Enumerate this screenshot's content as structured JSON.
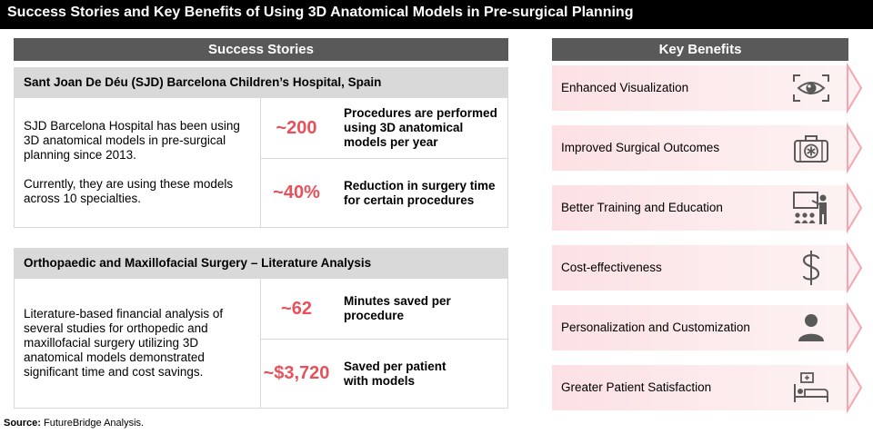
{
  "title": "Success Stories and Key Benefits of Using 3D Anatomical Models in Pre-surgical Planning",
  "success_stories": {
    "heading": "Success Stories",
    "cards": [
      {
        "title": "Sant Joan De Déu (SJD) Barcelona Children’s Hospital, Spain",
        "paragraphs": [
          "SJD Barcelona Hospital has been using\n3D anatomical models in pre-surgical\nplanning since 2013.",
          "Currently, they are using these models\nacross 10 specialties."
        ],
        "stats": [
          {
            "value": "~200",
            "label": "Procedures are performed\nusing 3D anatomical\nmodels per year"
          },
          {
            "value": "~40%",
            "label": "Reduction in surgery time\nfor certain procedures"
          }
        ]
      },
      {
        "title": "Orthopaedic and Maxillofacial Surgery – Literature Analysis",
        "paragraphs": [
          "Literature-based financial analysis of\nseveral studies for orthopedic and\nmaxillofacial surgery utilizing 3D\nanatomical models demonstrated\nsignificant time and cost savings."
        ],
        "stats": [
          {
            "value": "~62",
            "label": "Minutes saved per\nprocedure"
          },
          {
            "value": "~$3,720",
            "label": "Saved per patient\nwith models"
          }
        ]
      }
    ]
  },
  "key_benefits": {
    "heading": "Key Benefits",
    "items": [
      {
        "label": "Enhanced Visualization",
        "icon": "eye-scan-icon"
      },
      {
        "label": "Improved Surgical Outcomes",
        "icon": "medical-kit-icon"
      },
      {
        "label": "Better Training and Education",
        "icon": "teacher-presentation-icon"
      },
      {
        "label": "Cost-effectiveness",
        "icon": "dollar-icon"
      },
      {
        "label": "Personalization and Customization",
        "icon": "person-icon"
      },
      {
        "label": "Greater Patient Satisfaction",
        "icon": "hospital-bed-icon"
      }
    ]
  },
  "source": {
    "label": "Source:",
    "text": "FutureBridge Analysis."
  },
  "colors": {
    "title_bar": "#000000",
    "section_header": "#595959",
    "card_header": "#d9d9d9",
    "stat_value": "#e8505b",
    "benefit_fill": "#fce1e4",
    "benefit_chevron": "#f3a6ad",
    "icon": "#595959"
  }
}
